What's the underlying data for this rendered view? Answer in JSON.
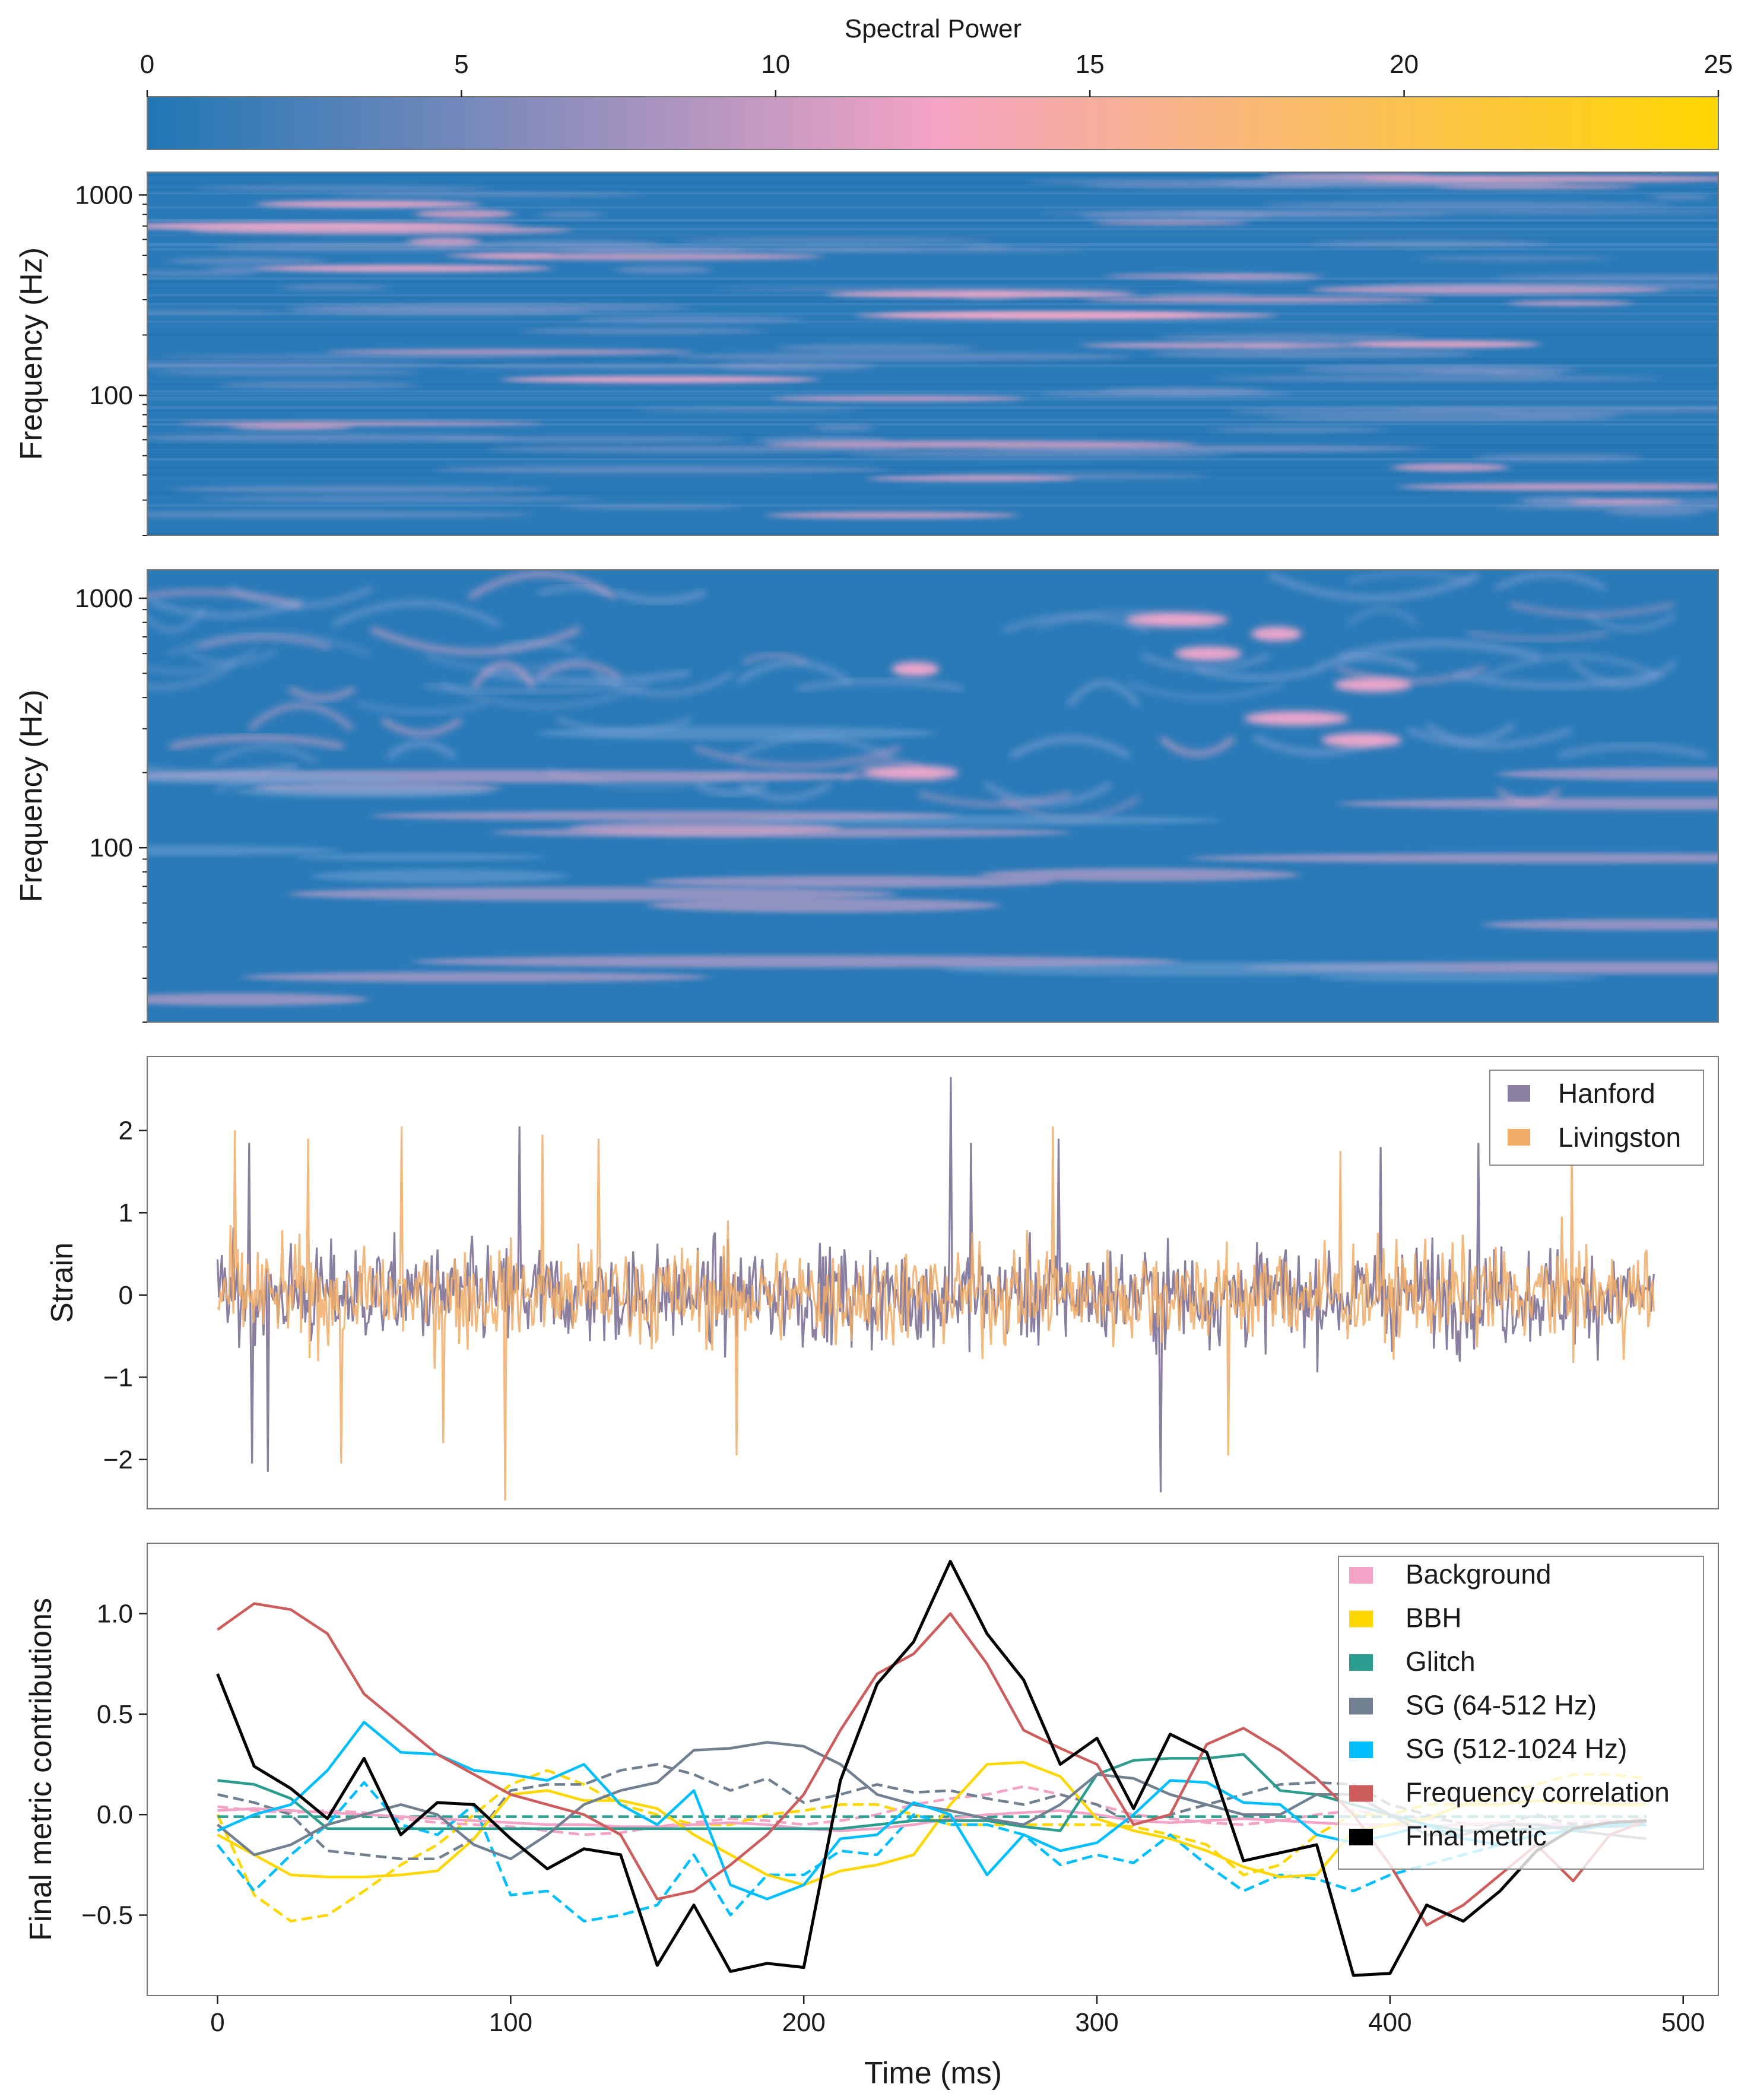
{
  "chart_data": [
    {
      "type": "colorbar",
      "title": "Spectral Power",
      "ticks": [
        0,
        5,
        10,
        15,
        20,
        25
      ],
      "range": [
        0,
        25
      ],
      "colors": [
        "#1f77b4",
        "#f3a3c5",
        "#ffd700"
      ]
    },
    {
      "type": "heatmap",
      "ylabel": "Frequency (Hz)",
      "yscale": "log",
      "ylim": [
        20,
        1300
      ],
      "yticks": [
        100,
        1000
      ],
      "ytick_labels": [
        "100",
        "1000"
      ],
      "style": "horizontal streaks",
      "hot_spots_hz": [
        120,
        180,
        250,
        320,
        430,
        700,
        900
      ]
    },
    {
      "type": "heatmap",
      "ylabel": "Frequency (Hz)",
      "yscale": "log",
      "ylim": [
        20,
        1300
      ],
      "yticks": [
        100,
        1000
      ],
      "ytick_labels": [
        "100",
        "1000"
      ],
      "style": "chirp arcs",
      "hot_spots_hz": [
        330,
        450,
        520,
        600,
        720,
        820,
        270,
        200
      ]
    },
    {
      "type": "line",
      "ylabel": "Strain",
      "ylim": [
        -2.6,
        2.9
      ],
      "yticks": [
        -2,
        -1,
        0,
        1,
        2
      ],
      "ytick_labels": [
        "−2",
        "−1",
        "0",
        "1",
        "2"
      ],
      "x_range_ms": [
        0,
        490
      ],
      "series": [
        {
          "name": "Hanford",
          "color": "#8a7fa0",
          "spikes": [
            [
              11,
              1.85
            ],
            [
              12,
              -2.05
            ],
            [
              17,
              -2.15
            ],
            [
              103,
              2.05
            ],
            [
              250,
              2.65
            ],
            [
              257,
              1.85
            ],
            [
              287,
              1.9
            ],
            [
              322,
              -2.4
            ],
            [
              397,
              1.8
            ],
            [
              430,
              1.85
            ]
          ]
        },
        {
          "name": "Livingston",
          "color": "#f0ac66",
          "spikes": [
            [
              6,
              2.0
            ],
            [
              31,
              1.9
            ],
            [
              42,
              -2.05
            ],
            [
              63,
              2.05
            ],
            [
              77,
              -1.8
            ],
            [
              98,
              -2.5
            ],
            [
              111,
              1.95
            ],
            [
              130,
              1.9
            ],
            [
              177,
              -1.95
            ],
            [
              285,
              2.05
            ],
            [
              345,
              -1.95
            ],
            [
              383,
              1.75
            ],
            [
              462,
              1.85
            ]
          ]
        }
      ],
      "legend": "top-right"
    },
    {
      "type": "line",
      "xlabel": "Time (ms)",
      "ylabel": "Final metric contributions",
      "xlim": [
        -24,
        512
      ],
      "ylim": [
        -0.9,
        1.35
      ],
      "xticks": [
        0,
        100,
        200,
        300,
        400,
        500
      ],
      "xtick_labels": [
        "0",
        "100",
        "200",
        "300",
        "400",
        "500"
      ],
      "yticks": [
        -0.5,
        0.0,
        0.5,
        1.0
      ],
      "ytick_labels": [
        "−0.5",
        "0.0",
        "0.5",
        "1.0"
      ],
      "x": [
        0,
        12.5,
        25,
        37.5,
        50,
        62.5,
        75,
        87.5,
        100,
        112.5,
        125,
        137.5,
        150,
        162.5,
        175,
        187.5,
        200,
        212.5,
        225,
        237.5,
        250,
        262.5,
        275,
        287.5,
        300,
        312.5,
        325,
        337.5,
        350,
        362.5,
        375,
        387.5,
        400,
        412.5,
        425,
        437.5,
        450,
        462.5,
        475,
        487.5
      ],
      "legend": "top-right",
      "series": [
        {
          "name": "Background",
          "color": "#f3a3c5",
          "values": [
            0.02,
            0.03,
            0.02,
            0.01,
            0.0,
            -0.01,
            -0.02,
            -0.03,
            -0.04,
            -0.05,
            -0.05,
            -0.06,
            -0.06,
            -0.05,
            -0.04,
            -0.05,
            -0.07,
            -0.08,
            -0.07,
            -0.05,
            -0.02,
            0.0,
            0.01,
            0.02,
            0.0,
            -0.03,
            -0.04,
            -0.03,
            -0.02,
            -0.03,
            -0.04,
            -0.05,
            -0.05,
            -0.06,
            -0.05,
            -0.04,
            -0.05,
            -0.06,
            -0.05,
            -0.04
          ]
        },
        {
          "name": "Background (dashed)",
          "color": "#f3a3c5",
          "dashed": true,
          "values": [
            0.04,
            0.02,
            0.01,
            0.02,
            0.01,
            -0.02,
            -0.04,
            -0.05,
            -0.06,
            -0.08,
            -0.1,
            -0.09,
            -0.06,
            -0.04,
            -0.02,
            -0.03,
            -0.05,
            -0.03,
            0.0,
            0.05,
            0.08,
            0.1,
            0.14,
            0.1,
            0.05,
            0.0,
            -0.02,
            -0.04,
            -0.05,
            -0.03,
            0.0,
            0.02,
            0.0,
            -0.02,
            -0.04,
            -0.06,
            -0.05,
            -0.04,
            -0.03,
            -0.02
          ]
        },
        {
          "name": "BBH",
          "color": "#ffd700",
          "values": [
            -0.1,
            -0.2,
            -0.3,
            -0.31,
            -0.31,
            -0.3,
            -0.28,
            -0.12,
            0.1,
            0.12,
            0.07,
            0.07,
            0.03,
            -0.1,
            -0.2,
            -0.3,
            -0.35,
            -0.28,
            -0.25,
            -0.2,
            0.05,
            0.25,
            0.26,
            0.19,
            -0.02,
            -0.08,
            -0.12,
            -0.18,
            -0.26,
            -0.31,
            -0.3,
            -0.08,
            -0.05,
            -0.02,
            0.05,
            0.05,
            0.07,
            0.06,
            0.05,
            0.05
          ]
        },
        {
          "name": "BBH (dashed)",
          "color": "#ffd700",
          "dashed": true,
          "values": [
            0.0,
            -0.4,
            -0.53,
            -0.5,
            -0.38,
            -0.25,
            -0.15,
            0.0,
            0.15,
            0.22,
            0.15,
            0.05,
            0.0,
            -0.05,
            -0.05,
            0.0,
            0.02,
            0.05,
            0.05,
            0.0,
            -0.05,
            -0.05,
            -0.05,
            -0.05,
            -0.05,
            -0.06,
            -0.1,
            -0.15,
            -0.3,
            -0.25,
            -0.1,
            0.0,
            0.0,
            0.05,
            0.05,
            0.1,
            0.15,
            0.2,
            0.2,
            0.18
          ]
        },
        {
          "name": "Glitch",
          "color": "#2a9d8f",
          "values": [
            0.17,
            0.15,
            0.08,
            -0.07,
            -0.07,
            -0.07,
            -0.07,
            -0.07,
            -0.07,
            -0.07,
            -0.07,
            -0.07,
            -0.07,
            -0.07,
            -0.07,
            -0.07,
            -0.07,
            -0.07,
            -0.05,
            -0.03,
            -0.03,
            -0.03,
            -0.06,
            -0.08,
            0.2,
            0.27,
            0.28,
            0.28,
            0.3,
            0.12,
            0.1,
            0.05,
            0.0,
            -0.05,
            -0.08,
            -0.08,
            -0.07,
            -0.06,
            -0.06,
            -0.05
          ]
        },
        {
          "name": "Glitch (dashed)",
          "color": "#2a9d8f",
          "dashed": true,
          "values": [
            -0.01,
            -0.01,
            -0.01,
            -0.01,
            -0.01,
            -0.01,
            -0.01,
            -0.01,
            -0.01,
            -0.01,
            -0.01,
            -0.01,
            -0.01,
            -0.01,
            -0.01,
            -0.01,
            -0.01,
            -0.01,
            -0.01,
            -0.01,
            -0.01,
            -0.01,
            -0.01,
            -0.01,
            -0.01,
            -0.01,
            -0.01,
            -0.01,
            -0.01,
            -0.01,
            -0.01,
            -0.01,
            -0.01,
            -0.01,
            -0.01,
            -0.01,
            -0.01,
            -0.01,
            -0.01,
            -0.01
          ]
        },
        {
          "name": "SG (64-512 Hz)",
          "color": "#708090",
          "values": [
            -0.05,
            -0.2,
            -0.15,
            -0.05,
            0.0,
            0.05,
            0.0,
            -0.15,
            -0.22,
            -0.1,
            0.05,
            0.12,
            0.16,
            0.32,
            0.33,
            0.36,
            0.34,
            0.25,
            0.1,
            0.05,
            0.02,
            -0.02,
            -0.05,
            0.05,
            0.2,
            0.18,
            0.1,
            0.05,
            0.0,
            0.0,
            0.1,
            0.1,
            0.0,
            -0.1,
            -0.1,
            -0.05,
            -0.05,
            -0.08,
            -0.1,
            -0.12
          ]
        },
        {
          "name": "SG (64-512 Hz) (dashed)",
          "color": "#708090",
          "dashed": true,
          "values": [
            0.1,
            0.06,
            0.0,
            -0.18,
            -0.2,
            -0.22,
            -0.22,
            -0.12,
            0.12,
            0.15,
            0.15,
            0.22,
            0.25,
            0.2,
            0.12,
            0.18,
            0.06,
            0.1,
            0.15,
            0.11,
            0.12,
            0.08,
            0.05,
            0.1,
            0.05,
            -0.05,
            0.0,
            0.05,
            0.1,
            0.15,
            0.16,
            0.15,
            0.05,
            0.0,
            -0.05,
            -0.05,
            0.0,
            -0.05,
            -0.05,
            -0.05
          ]
        },
        {
          "name": "SG (512-1024 Hz)",
          "color": "#00bfff",
          "values": [
            -0.08,
            0.0,
            0.05,
            0.22,
            0.46,
            0.31,
            0.3,
            0.22,
            0.2,
            0.17,
            0.25,
            0.05,
            -0.05,
            0.12,
            -0.35,
            -0.42,
            -0.35,
            -0.12,
            -0.1,
            0.06,
            0.0,
            -0.3,
            -0.1,
            -0.18,
            -0.14,
            0.0,
            0.17,
            0.16,
            0.06,
            0.05,
            -0.1,
            -0.14,
            -0.1,
            -0.05,
            -0.12,
            -0.15,
            -0.1,
            -0.08,
            -0.05,
            -0.05
          ]
        },
        {
          "name": "SG (512-1024 Hz) (dashed)",
          "color": "#00bfff",
          "dashed": true,
          "values": [
            -0.15,
            -0.38,
            -0.2,
            -0.05,
            0.16,
            -0.05,
            -0.1,
            0.05,
            -0.4,
            -0.38,
            -0.53,
            -0.5,
            -0.45,
            -0.2,
            -0.5,
            -0.3,
            -0.3,
            -0.18,
            -0.2,
            0.0,
            -0.05,
            -0.05,
            -0.1,
            -0.25,
            -0.2,
            -0.24,
            -0.1,
            -0.25,
            -0.38,
            -0.3,
            -0.32,
            -0.38,
            -0.3,
            -0.25,
            -0.2,
            -0.15,
            -0.1,
            -0.08,
            -0.05,
            -0.05
          ]
        },
        {
          "name": "Frequency correlation",
          "color": "#cd5c5c",
          "values": [
            0.92,
            1.05,
            1.02,
            0.9,
            0.6,
            0.45,
            0.3,
            0.2,
            0.1,
            0.05,
            0.0,
            -0.1,
            -0.42,
            -0.38,
            -0.25,
            -0.1,
            0.1,
            0.42,
            0.7,
            0.8,
            1.0,
            0.75,
            0.42,
            0.33,
            0.25,
            -0.05,
            0.0,
            0.35,
            0.43,
            0.32,
            0.18,
            0.0,
            -0.25,
            -0.55,
            -0.45,
            -0.3,
            -0.15,
            -0.33,
            -0.1,
            -0.03
          ]
        },
        {
          "name": "Final metric",
          "color": "#000000",
          "values": [
            0.7,
            0.24,
            0.13,
            -0.02,
            0.28,
            -0.1,
            0.06,
            0.05,
            -0.12,
            -0.27,
            -0.17,
            -0.2,
            -0.75,
            -0.45,
            -0.78,
            -0.74,
            -0.76,
            0.17,
            0.65,
            0.86,
            1.26,
            0.9,
            0.67,
            0.25,
            0.38,
            0.03,
            0.4,
            0.31,
            -0.23,
            -0.19,
            -0.15,
            -0.8,
            -0.79,
            -0.45,
            -0.53,
            -0.38,
            -0.18,
            -0.07,
            -0.04,
            -0.03
          ]
        }
      ]
    }
  ]
}
